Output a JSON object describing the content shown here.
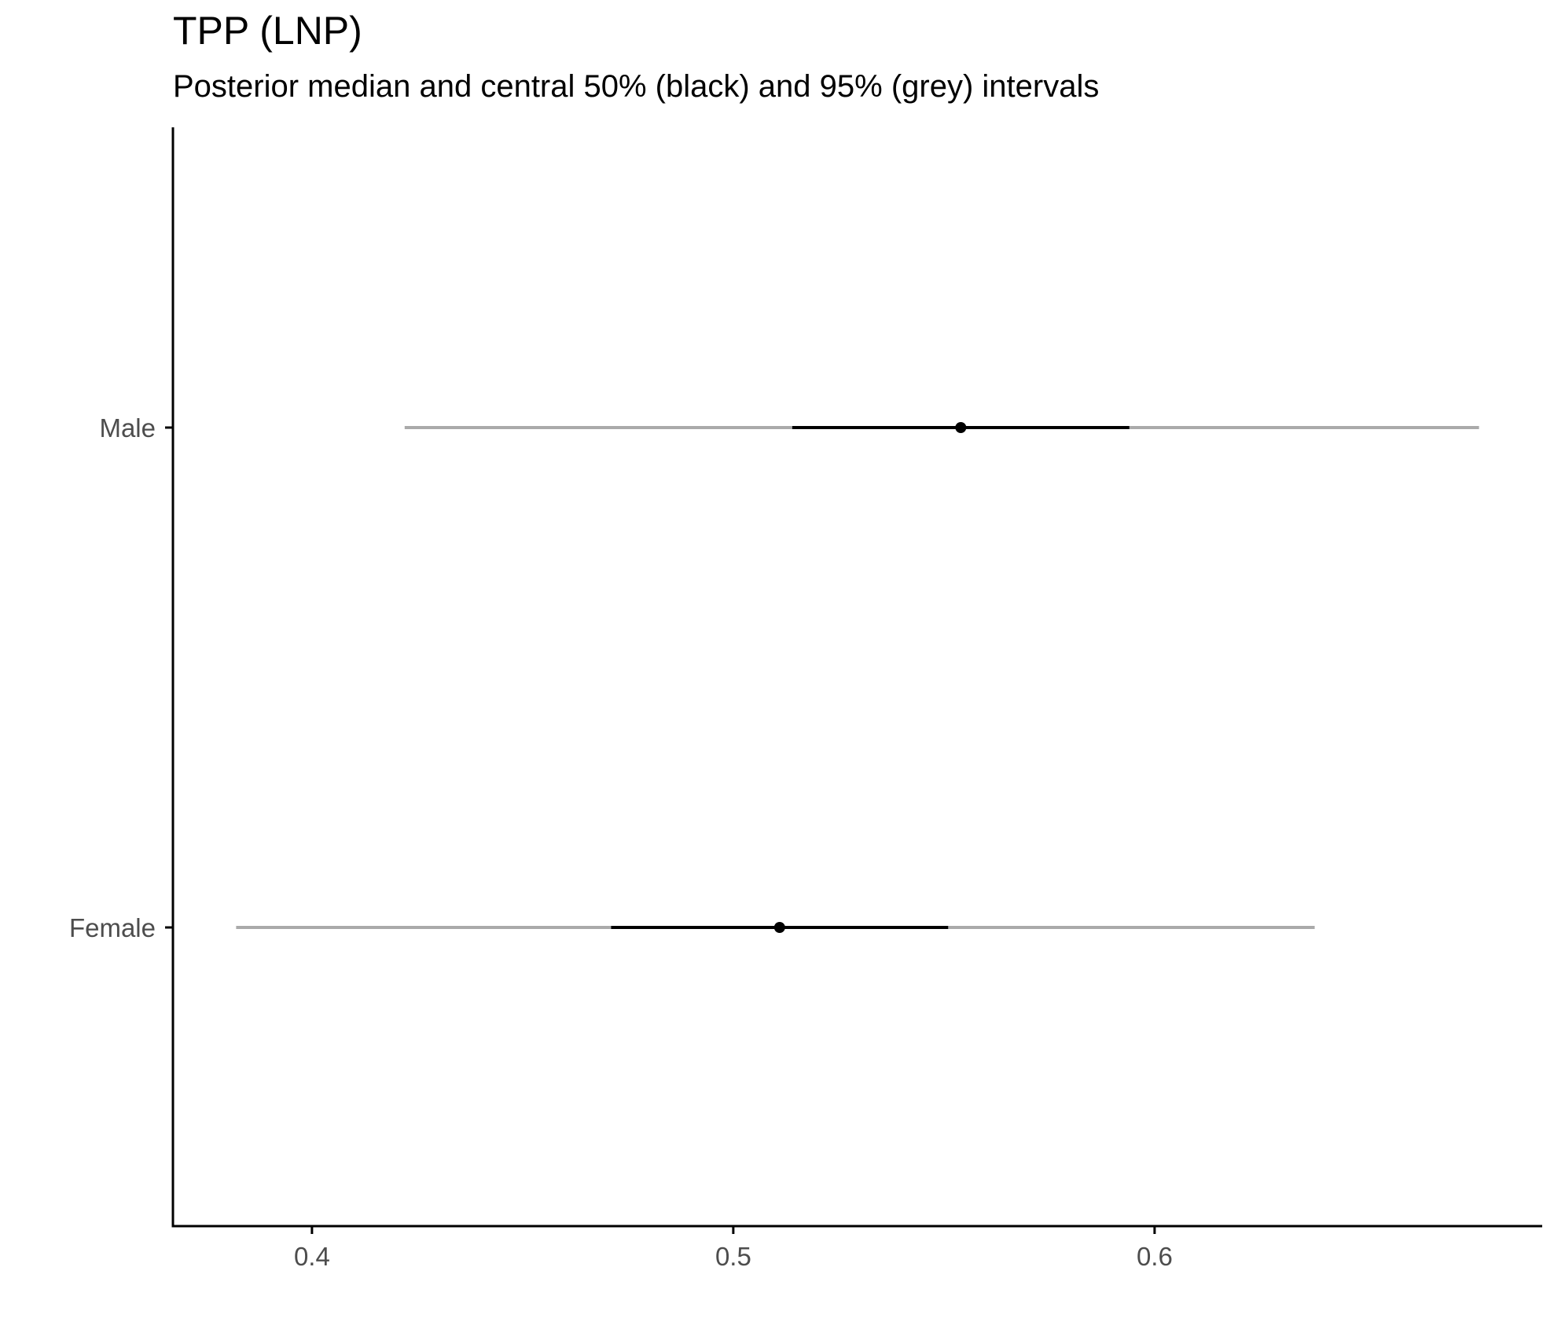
{
  "chart_data": {
    "type": "interval",
    "title": "TPP (LNP)",
    "subtitle": "Posterior median and central 50% (black) and 95% (grey) intervals",
    "xlabel": "",
    "ylabel": "",
    "xlim": [
      0.367,
      0.692
    ],
    "x_ticks": [
      0.4,
      0.5,
      0.6
    ],
    "x_tick_labels": [
      "0.4",
      "0.5",
      "0.6"
    ],
    "categories": [
      "Male",
      "Female"
    ],
    "series": [
      {
        "category": "Male",
        "median": 0.554,
        "q25": 0.514,
        "q75": 0.594,
        "q2_5": 0.422,
        "q97_5": 0.677
      },
      {
        "category": "Female",
        "median": 0.511,
        "q25": 0.471,
        "q75": 0.551,
        "q2_5": 0.382,
        "q97_5": 0.638
      }
    ],
    "colors": {
      "interval_50": "#000000",
      "interval_95": "#aaaaaa",
      "point": "#000000",
      "axis": "#000000",
      "tick_label": "#4d4d4d"
    },
    "grid": false,
    "legend": "none"
  }
}
